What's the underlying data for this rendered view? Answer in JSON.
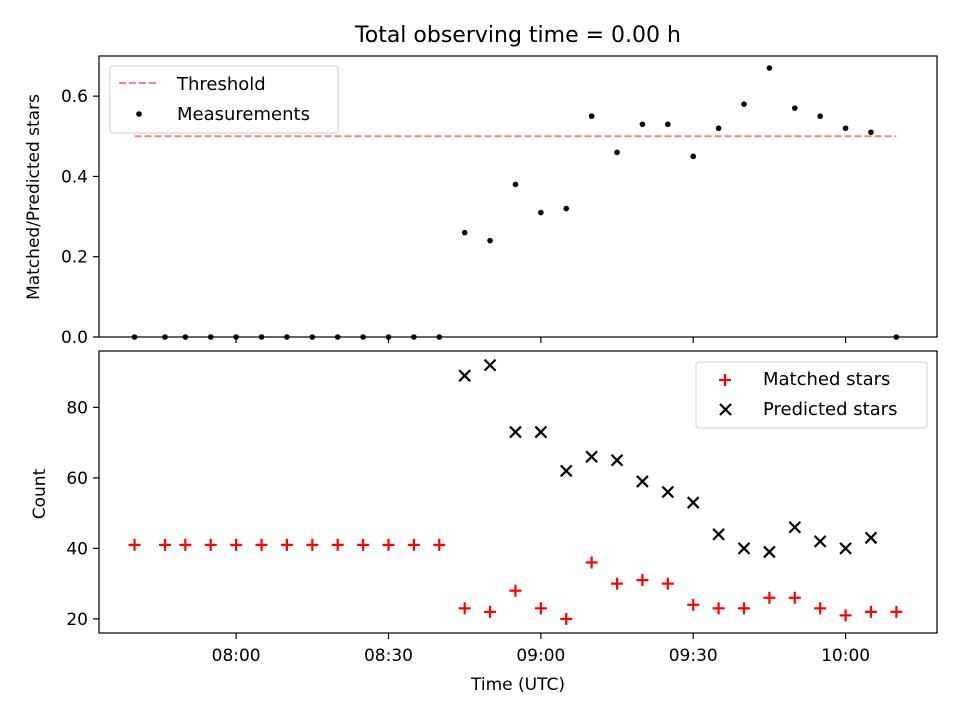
{
  "chart_data": [
    {
      "type": "scatter",
      "title": "Total observing time = 0.00 h",
      "ylabel": "Matched/Predicted stars",
      "xlabel": "",
      "ylim": [
        0,
        0.7
      ],
      "yticks": [
        0.0,
        0.2,
        0.4,
        0.6
      ],
      "ytick_labels": [
        "0.0",
        "0.2",
        "0.4",
        "0.6"
      ],
      "xlim": [
        "07:33",
        "10:18"
      ],
      "xticks": [
        "08:00",
        "08:30",
        "09:00",
        "09:30",
        "10:00"
      ],
      "xtick_labels_shown": false,
      "legend_position": "upper-left",
      "series": [
        {
          "name": "Threshold",
          "style": "dashed-line",
          "color": "#ff8080",
          "x": [
            "07:40",
            "10:10"
          ],
          "y": [
            0.5,
            0.5
          ]
        },
        {
          "name": "Measurements",
          "style": "dot",
          "color": "#000000",
          "x": [
            "07:40",
            "07:46",
            "07:50",
            "07:55",
            "08:00",
            "08:05",
            "08:10",
            "08:15",
            "08:20",
            "08:25",
            "08:30",
            "08:35",
            "08:40",
            "08:45",
            "08:50",
            "08:55",
            "09:00",
            "09:05",
            "09:10",
            "09:15",
            "09:20",
            "09:25",
            "09:30",
            "09:35",
            "09:40",
            "09:45",
            "09:50",
            "09:55",
            "10:00",
            "10:05",
            "10:10"
          ],
          "y": [
            0,
            0,
            0,
            0,
            0,
            0,
            0,
            0,
            0,
            0,
            0,
            0,
            0,
            0.26,
            0.24,
            0.38,
            0.31,
            0.32,
            0.55,
            0.46,
            0.53,
            0.53,
            0.45,
            0.52,
            0.58,
            0.67,
            0.57,
            0.55,
            0.52,
            0.51,
            0
          ]
        }
      ]
    },
    {
      "type": "scatter",
      "title": "",
      "ylabel": "Count",
      "xlabel": "Time (UTC)",
      "ylim": [
        16,
        96
      ],
      "yticks": [
        20,
        40,
        60,
        80
      ],
      "ytick_labels": [
        "20",
        "40",
        "60",
        "80"
      ],
      "xlim": [
        "07:33",
        "10:18"
      ],
      "xticks": [
        "08:00",
        "08:30",
        "09:00",
        "09:30",
        "10:00"
      ],
      "xtick_labels": [
        "08:00",
        "08:30",
        "09:00",
        "09:30",
        "10:00"
      ],
      "legend_position": "upper-right",
      "series": [
        {
          "name": "Matched stars",
          "marker": "plus",
          "color": "#ff0000",
          "x": [
            "07:40",
            "07:46",
            "07:50",
            "07:55",
            "08:00",
            "08:05",
            "08:10",
            "08:15",
            "08:20",
            "08:25",
            "08:30",
            "08:35",
            "08:40",
            "08:45",
            "08:50",
            "08:55",
            "09:00",
            "09:05",
            "09:10",
            "09:15",
            "09:20",
            "09:25",
            "09:30",
            "09:35",
            "09:40",
            "09:45",
            "09:50",
            "09:55",
            "10:00",
            "10:05",
            "10:10"
          ],
          "y": [
            41,
            41,
            41,
            41,
            41,
            41,
            41,
            41,
            41,
            41,
            41,
            41,
            41,
            23,
            22,
            28,
            23,
            20,
            36,
            30,
            31,
            30,
            24,
            23,
            23,
            26,
            26,
            23,
            21,
            22,
            22
          ]
        },
        {
          "name": "Predicted stars",
          "marker": "x",
          "color": "#000000",
          "x": [
            "08:45",
            "08:50",
            "08:55",
            "09:00",
            "09:05",
            "09:10",
            "09:15",
            "09:20",
            "09:25",
            "09:30",
            "09:35",
            "09:40",
            "09:45",
            "09:50",
            "09:55",
            "10:00",
            "10:05"
          ],
          "y": [
            89,
            92,
            73,
            73,
            62,
            66,
            65,
            59,
            56,
            53,
            44,
            40,
            39,
            46,
            42,
            40,
            43
          ]
        }
      ]
    }
  ]
}
